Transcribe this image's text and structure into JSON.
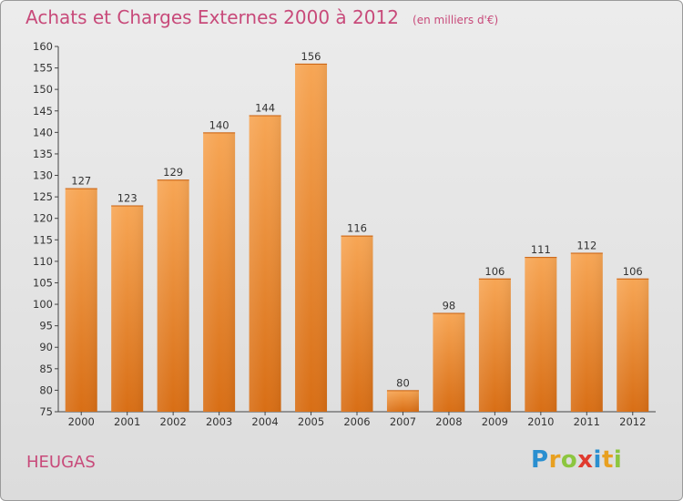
{
  "header": {
    "title": "Achats et Charges Externes 2000 à 2012",
    "subtitle": "(en milliers d'€)"
  },
  "commune": "HEUGAS",
  "logo": {
    "letters": [
      "P",
      "r",
      "o",
      "x",
      "i",
      "t",
      "i"
    ],
    "colors": [
      "#2a8fd0",
      "#e8a020",
      "#8cc63f",
      "#e03a2e",
      "#2a8fd0",
      "#e8a020",
      "#8cc63f"
    ]
  },
  "colors": {
    "bar_light": "#f7a655",
    "bar_dark": "#d86e15",
    "title": "#c84a7a"
  },
  "chart_data": {
    "type": "bar",
    "title": "Achats et Charges Externes 2000 à 2012",
    "xlabel": "",
    "ylabel": "",
    "categories": [
      "2000",
      "2001",
      "2002",
      "2003",
      "2004",
      "2005",
      "2006",
      "2007",
      "2008",
      "2009",
      "2010",
      "2011",
      "2012"
    ],
    "values": [
      127,
      123,
      129,
      140,
      144,
      156,
      116,
      80,
      98,
      106,
      111,
      112,
      106
    ],
    "ylim": [
      75,
      160
    ],
    "yticks": [
      75,
      80,
      85,
      90,
      95,
      100,
      105,
      110,
      115,
      120,
      125,
      130,
      135,
      140,
      145,
      150,
      155,
      160
    ],
    "grid": false,
    "legend": "none"
  }
}
